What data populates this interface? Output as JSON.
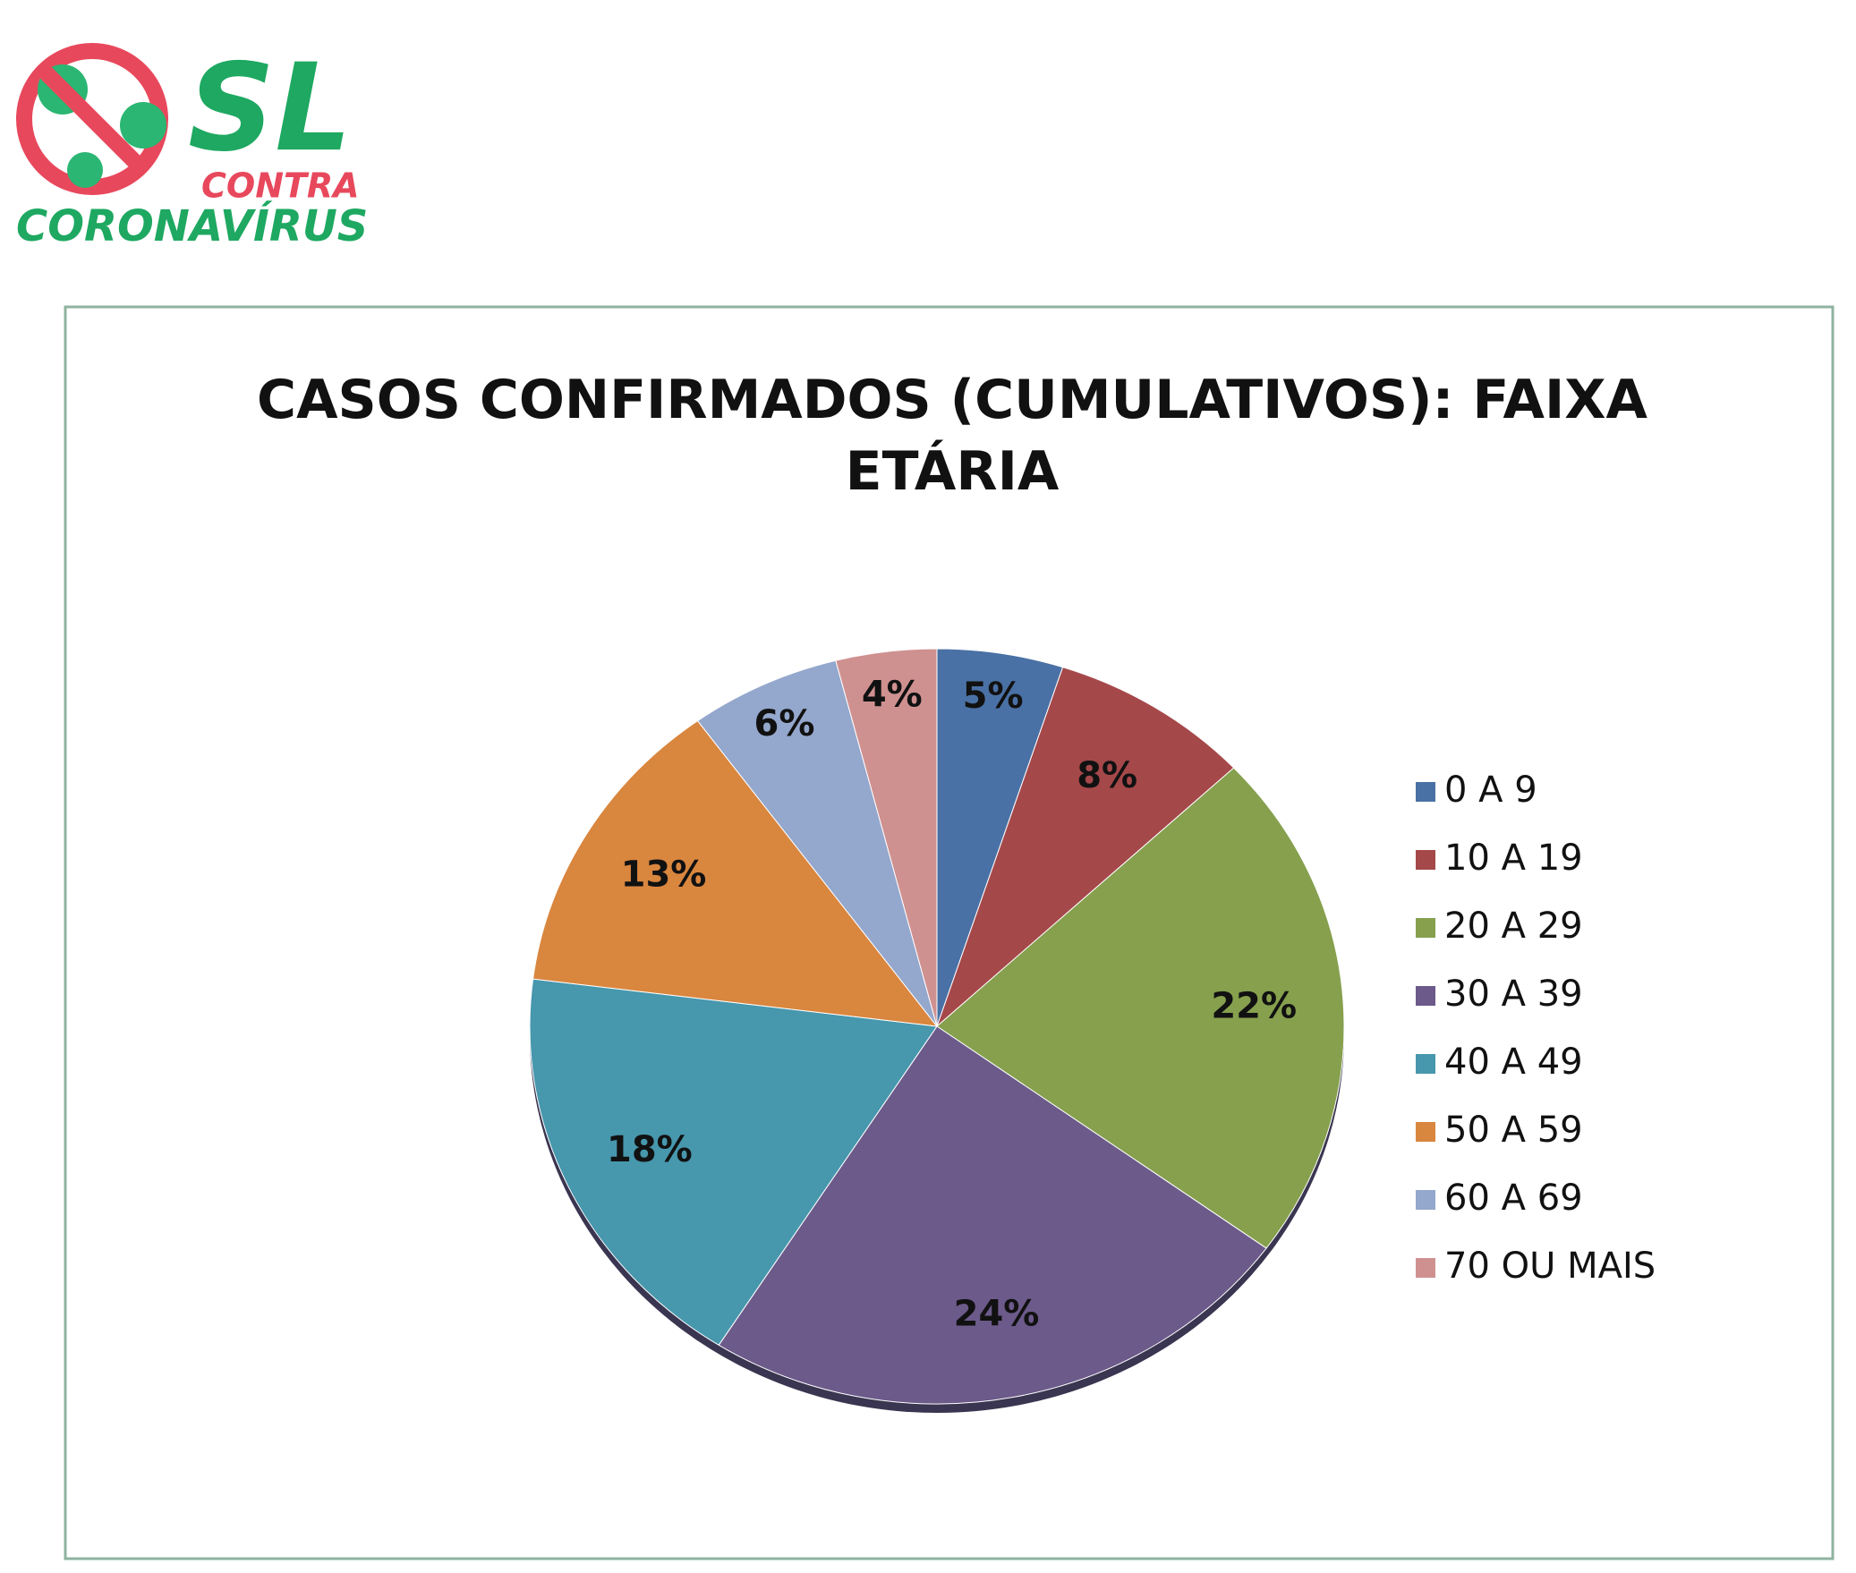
{
  "logo": {
    "line1": "SL",
    "line2": "CONTRA",
    "line3": "CORONAVÍRUS"
  },
  "chart_data": {
    "type": "pie",
    "title": "CASOS CONFIRMADOS (CUMULATIVOS): FAIXA ETÁRIA",
    "categories": [
      "0 A 9",
      "10 A 19",
      "20 A 29",
      "30 A 39",
      "40 A 49",
      "50 A 59",
      "60 A 69",
      "70 OU MAIS"
    ],
    "values": [
      5,
      8,
      22,
      24,
      18,
      13,
      6,
      4
    ],
    "value_labels": [
      "5%",
      "8%",
      "22%",
      "24%",
      "18%",
      "13%",
      "6%",
      "4%"
    ],
    "colors": [
      "#4a71a5",
      "#a5484a",
      "#86a04e",
      "#6c5a8a",
      "#4797ad",
      "#d9863f",
      "#94a7cc",
      "#cf9190"
    ],
    "legend": "right"
  }
}
